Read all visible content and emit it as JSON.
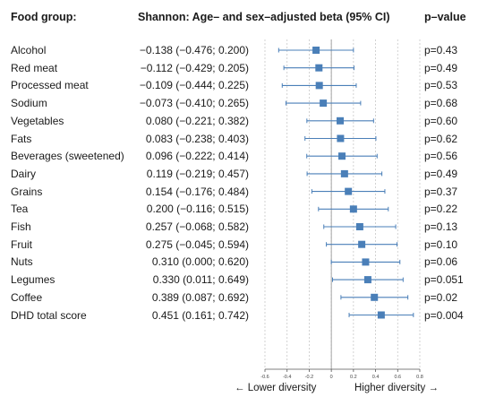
{
  "headers": {
    "food_group": "Food group:",
    "beta": "Shannon: Age– and sex–adjusted beta (95% CI)",
    "pvalue": "p–value"
  },
  "axis": {
    "lower_label": "← Lower diversity",
    "higher_label": "Higher diversity →"
  },
  "chart_data": {
    "type": "forest",
    "title": "",
    "xlabel": "",
    "xlim": [
      -0.6,
      0.8
    ],
    "ticks": [
      -0.6,
      -0.4,
      -0.2,
      0.0,
      0.2,
      0.4,
      0.6,
      0.8
    ],
    "tick_labels": [
      "-0.6",
      "-0.4",
      "-0.2",
      "0",
      "0.2",
      "0.4",
      "0.6",
      "0.8"
    ],
    "reference_line": 0.0,
    "grid": true,
    "marker_color": "#4a7fb8",
    "rows": [
      {
        "label": "Alcohol",
        "beta": -0.138,
        "ci_low": -0.476,
        "ci_high": 0.2,
        "beta_text": "−0.138 (−0.476; 0.200)",
        "p_text": "p=0.43"
      },
      {
        "label": "Red meat",
        "beta": -0.112,
        "ci_low": -0.429,
        "ci_high": 0.205,
        "beta_text": "−0.112 (−0.429; 0.205)",
        "p_text": "p=0.49"
      },
      {
        "label": "Processed meat",
        "beta": -0.109,
        "ci_low": -0.444,
        "ci_high": 0.225,
        "beta_text": "−0.109 (−0.444; 0.225)",
        "p_text": "p=0.53"
      },
      {
        "label": "Sodium",
        "beta": -0.073,
        "ci_low": -0.41,
        "ci_high": 0.265,
        "beta_text": "−0.073 (−0.410; 0.265)",
        "p_text": "p=0.68"
      },
      {
        "label": "Vegetables",
        "beta": 0.08,
        "ci_low": -0.221,
        "ci_high": 0.382,
        "beta_text": "0.080 (−0.221; 0.382)",
        "p_text": "p=0.60"
      },
      {
        "label": "Fats",
        "beta": 0.083,
        "ci_low": -0.238,
        "ci_high": 0.403,
        "beta_text": "0.083 (−0.238; 0.403)",
        "p_text": "p=0.62"
      },
      {
        "label": "Beverages (sweetened)",
        "beta": 0.096,
        "ci_low": -0.222,
        "ci_high": 0.414,
        "beta_text": "0.096 (−0.222; 0.414)",
        "p_text": "p=0.56"
      },
      {
        "label": "Dairy",
        "beta": 0.119,
        "ci_low": -0.219,
        "ci_high": 0.457,
        "beta_text": "0.119 (−0.219; 0.457)",
        "p_text": "p=0.49"
      },
      {
        "label": "Grains",
        "beta": 0.154,
        "ci_low": -0.176,
        "ci_high": 0.484,
        "beta_text": "0.154 (−0.176; 0.484)",
        "p_text": "p=0.37"
      },
      {
        "label": "Tea",
        "beta": 0.2,
        "ci_low": -0.116,
        "ci_high": 0.515,
        "beta_text": "0.200 (−0.116; 0.515)",
        "p_text": "p=0.22"
      },
      {
        "label": "Fish",
        "beta": 0.257,
        "ci_low": -0.068,
        "ci_high": 0.582,
        "beta_text": "0.257 (−0.068; 0.582)",
        "p_text": "p=0.13"
      },
      {
        "label": "Fruit",
        "beta": 0.275,
        "ci_low": -0.045,
        "ci_high": 0.594,
        "beta_text": "0.275 (−0.045; 0.594)",
        "p_text": "p=0.10"
      },
      {
        "label": "Nuts",
        "beta": 0.31,
        "ci_low": 0.0,
        "ci_high": 0.62,
        "beta_text": "0.310 (0.000; 0.620)",
        "p_text": "p=0.06"
      },
      {
        "label": "Legumes",
        "beta": 0.33,
        "ci_low": 0.011,
        "ci_high": 0.649,
        "beta_text": "0.330 (0.011; 0.649)",
        "p_text": "p=0.051"
      },
      {
        "label": "Coffee",
        "beta": 0.389,
        "ci_low": 0.087,
        "ci_high": 0.692,
        "beta_text": "0.389 (0.087; 0.692)",
        "p_text": "p=0.02"
      },
      {
        "label": "DHD total score",
        "beta": 0.451,
        "ci_low": 0.161,
        "ci_high": 0.742,
        "beta_text": "0.451 (0.161; 0.742)",
        "p_text": "p=0.004"
      }
    ]
  }
}
